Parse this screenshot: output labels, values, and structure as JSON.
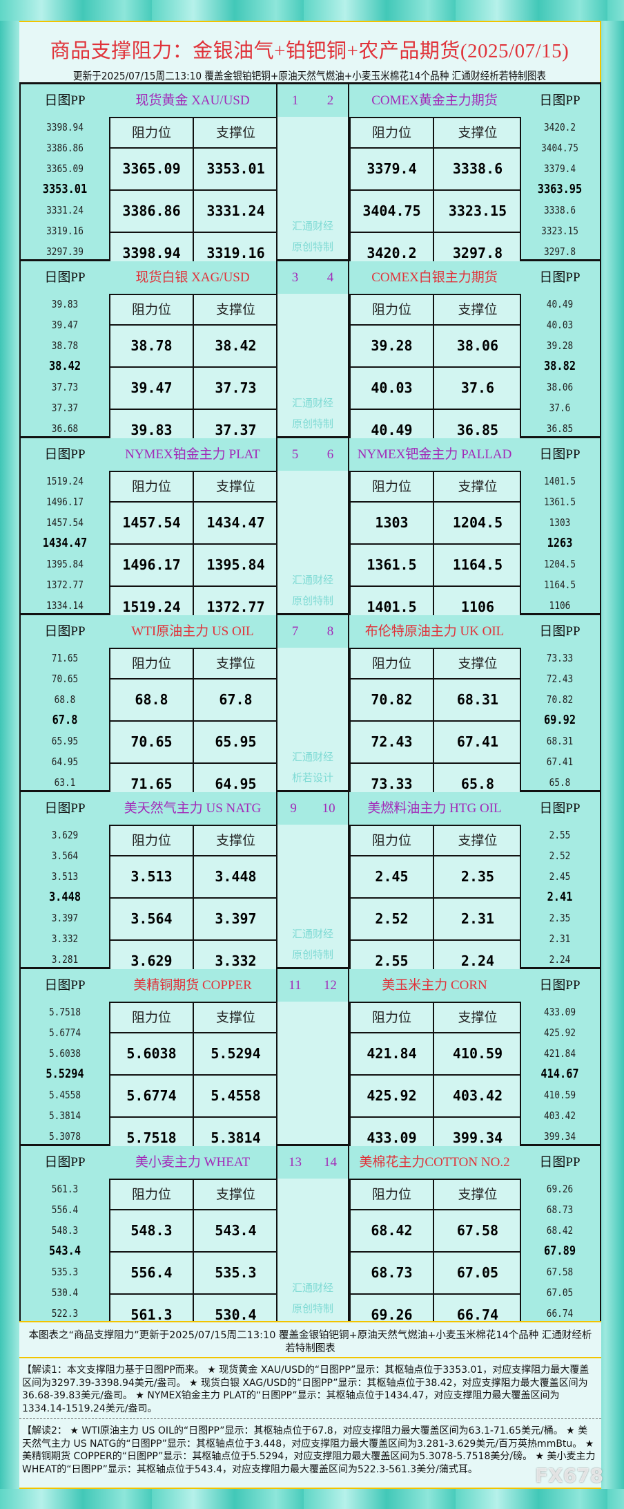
{
  "header": {
    "title": "商品支撑阻力：金银油气+铂钯铜+农产品期货(2025/07/15)",
    "subtitle": "更新于2025/07/15周二13:10 覆盖金银铂钯铜+原油天然气燃油+小麦玉米棉花14个品种 汇通财经析若特制图表"
  },
  "labels": {
    "pp": "日图PP",
    "resistance": "阻力位",
    "support": "支撑位"
  },
  "colors": {
    "purple": "#a22ab8",
    "red": "#e0333a"
  },
  "blocks": [
    {
      "nums": [
        "1",
        "2"
      ],
      "watermark": [
        "汇通财经",
        "原创特制"
      ],
      "left": {
        "name": "现货黄金 XAU/USD",
        "color": "purple",
        "pp": [
          "3398.94",
          "3386.86",
          "3365.09",
          "3353.01",
          "3331.24",
          "3319.16",
          "3297.39"
        ],
        "rows": [
          [
            "3365.09",
            "3353.01"
          ],
          [
            "3386.86",
            "3331.24"
          ],
          [
            "3398.94",
            "3319.16"
          ]
        ]
      },
      "right": {
        "name": "COMEX黄金主力期货",
        "color": "purple",
        "pp": [
          "3420.2",
          "3404.75",
          "3379.4",
          "3363.95",
          "3338.6",
          "3323.15",
          "3297.8"
        ],
        "rows": [
          [
            "3379.4",
            "3338.6"
          ],
          [
            "3404.75",
            "3323.15"
          ],
          [
            "3420.2",
            "3297.8"
          ]
        ]
      }
    },
    {
      "nums": [
        "3",
        "4"
      ],
      "watermark": [
        "汇通财经",
        "原创特制"
      ],
      "left": {
        "name": "现货白银 XAG/USD",
        "color": "red",
        "pp": [
          "39.83",
          "39.47",
          "38.78",
          "38.42",
          "37.73",
          "37.37",
          "36.68"
        ],
        "rows": [
          [
            "38.78",
            "38.42"
          ],
          [
            "39.47",
            "37.73"
          ],
          [
            "39.83",
            "37.37"
          ]
        ]
      },
      "right": {
        "name": "COMEX白银主力期货",
        "color": "red",
        "pp": [
          "40.49",
          "40.03",
          "39.28",
          "38.82",
          "38.06",
          "37.6",
          "36.85"
        ],
        "rows": [
          [
            "39.28",
            "38.06"
          ],
          [
            "40.03",
            "37.6"
          ],
          [
            "40.49",
            "36.85"
          ]
        ]
      }
    },
    {
      "nums": [
        "5",
        "6"
      ],
      "watermark": [
        "汇通财经",
        "原创特制"
      ],
      "left": {
        "name": "NYMEX铂金主力 PLAT",
        "color": "purple",
        "pp": [
          "1519.24",
          "1496.17",
          "1457.54",
          "1434.47",
          "1395.84",
          "1372.77",
          "1334.14"
        ],
        "rows": [
          [
            "1457.54",
            "1434.47"
          ],
          [
            "1496.17",
            "1395.84"
          ],
          [
            "1519.24",
            "1372.77"
          ]
        ]
      },
      "right": {
        "name": "NYMEX钯金主力 PALLAD",
        "color": "purple",
        "pp": [
          "1401.5",
          "1361.5",
          "1303",
          "1263",
          "1204.5",
          "1164.5",
          "1106"
        ],
        "rows": [
          [
            "1303",
            "1204.5"
          ],
          [
            "1361.5",
            "1164.5"
          ],
          [
            "1401.5",
            "1106"
          ]
        ]
      }
    },
    {
      "nums": [
        "7",
        "8"
      ],
      "watermark": [
        "汇通财经",
        "析若设计"
      ],
      "left": {
        "name": "WTI原油主力 US OIL",
        "color": "red",
        "pp": [
          "71.65",
          "70.65",
          "68.8",
          "67.8",
          "65.95",
          "64.95",
          "63.1"
        ],
        "rows": [
          [
            "68.8",
            "67.8"
          ],
          [
            "70.65",
            "65.95"
          ],
          [
            "71.65",
            "64.95"
          ]
        ]
      },
      "right": {
        "name": "布伦特原油主力 UK OIL",
        "color": "red",
        "pp": [
          "73.33",
          "72.43",
          "70.82",
          "69.92",
          "68.31",
          "67.41",
          "65.8"
        ],
        "rows": [
          [
            "70.82",
            "68.31"
          ],
          [
            "72.43",
            "67.41"
          ],
          [
            "73.33",
            "65.8"
          ]
        ]
      }
    },
    {
      "nums": [
        "9",
        "10"
      ],
      "watermark": [
        "汇通财经",
        "原创特制"
      ],
      "left": {
        "name": "美天然气主力 US NATG",
        "color": "purple",
        "pp": [
          "3.629",
          "3.564",
          "3.513",
          "3.448",
          "3.397",
          "3.332",
          "3.281"
        ],
        "rows": [
          [
            "3.513",
            "3.448"
          ],
          [
            "3.564",
            "3.397"
          ],
          [
            "3.629",
            "3.332"
          ]
        ]
      },
      "right": {
        "name": "美燃料油主力 HTG OIL",
        "color": "purple",
        "pp": [
          "2.55",
          "2.52",
          "2.45",
          "2.41",
          "2.35",
          "2.31",
          "2.24"
        ],
        "rows": [
          [
            "2.45",
            "2.35"
          ],
          [
            "2.52",
            "2.31"
          ],
          [
            "2.55",
            "2.24"
          ]
        ]
      }
    },
    {
      "nums": [
        "11",
        "12"
      ],
      "watermark": [],
      "left": {
        "name": "美精铜期货 COPPER",
        "color": "red",
        "pp": [
          "5.7518",
          "5.6774",
          "5.6038",
          "5.5294",
          "5.4558",
          "5.3814",
          "5.3078"
        ],
        "rows": [
          [
            "5.6038",
            "5.5294"
          ],
          [
            "5.6774",
            "5.4558"
          ],
          [
            "5.7518",
            "5.3814"
          ]
        ]
      },
      "right": {
        "name": "美玉米主力 CORN",
        "color": "red",
        "pp": [
          "433.09",
          "425.92",
          "421.84",
          "414.67",
          "410.59",
          "403.42",
          "399.34"
        ],
        "rows": [
          [
            "421.84",
            "410.59"
          ],
          [
            "425.92",
            "403.42"
          ],
          [
            "433.09",
            "399.34"
          ]
        ]
      }
    },
    {
      "nums": [
        "13",
        "14"
      ],
      "watermark": [
        "汇通财经",
        "原创特制"
      ],
      "left": {
        "name": "美小麦主力 WHEAT",
        "color": "purple",
        "pp": [
          "561.3",
          "556.4",
          "548.3",
          "543.4",
          "535.3",
          "530.4",
          "522.3"
        ],
        "rows": [
          [
            "548.3",
            "543.4"
          ],
          [
            "556.4",
            "535.3"
          ],
          [
            "561.3",
            "530.4"
          ]
        ]
      },
      "right": {
        "name": "美棉花主力COTTON NO.2",
        "color": "red",
        "pp": [
          "69.26",
          "68.73",
          "68.42",
          "67.89",
          "67.58",
          "67.05",
          "66.74"
        ],
        "rows": [
          [
            "68.42",
            "67.58"
          ],
          [
            "68.73",
            "67.05"
          ],
          [
            "69.26",
            "66.74"
          ]
        ]
      }
    }
  ],
  "footer": {
    "note": "本图表之“商品支撑阻力”更新于2025/07/15周二13:10 覆盖金银铂钯铜+原油天然气燃油+小麦玉米棉花14个品种 汇通财经析若特制图表",
    "read1": "【解读1：本文支撑阻力基于日图PP而来。 ★ 现货黄金 XAU/USD的“日图PP”显示：其枢轴点位于3353.01，对应支撑阻力最大覆盖区间为3297.39-3398.94美元/盎司。 ★ 现货白银 XAG/USD的“日图PP”显示：其枢轴点位于38.42，对应支撑阻力最大覆盖区间为36.68-39.83美元/盎司。 ★ NYMEX铂金主力 PLAT的“日图PP”显示：其枢轴点位于1434.47，对应支撑阻力最大覆盖区间为1334.14-1519.24美元/盎司。",
    "read2": "【解读2： ★ WTI原油主力 US OIL的“日图PP”显示：其枢轴点位于67.8，对应支撑阻力最大覆盖区间为63.1-71.65美元/桶。 ★ 美天然气主力 US NATG的“日图PP”显示：其枢轴点位于3.448，对应支撑阻力最大覆盖区间为3.281-3.629美元/百万英热mmBtu。 ★ 美精铜期货 COPPER的“日图PP”显示：其枢轴点位于5.5294，对应支撑阻力最大覆盖区间为5.3078-5.7518美分/磅。 ★ 美小麦主力 WHEAT的“日图PP”显示：其枢轴点位于543.4，对应支撑阻力最大覆盖区间为522.3-561.3美分/蒲式耳。",
    "logo": "FX678"
  }
}
